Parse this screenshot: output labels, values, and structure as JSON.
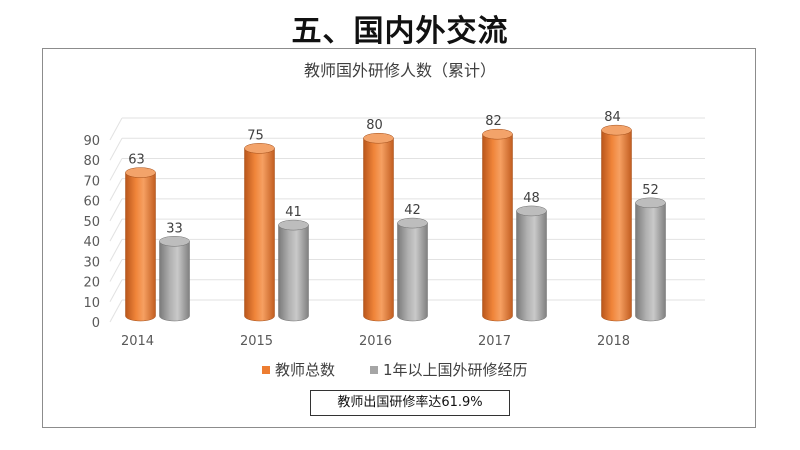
{
  "slide": {
    "title": "五、国内外交流"
  },
  "note": {
    "text": "教师出国研修率达61.9%"
  },
  "colors": {
    "orange": "#ED7D31",
    "gray": "#A5A5A5"
  },
  "chart_data": {
    "type": "bar",
    "title": "教师国外研修人数（累计）",
    "categories": [
      "2014",
      "2015",
      "2016",
      "2017",
      "2018"
    ],
    "series": [
      {
        "name": "教师总数",
        "values": [
          63,
          75,
          80,
          82,
          84
        ]
      },
      {
        "name": "1年以上国外研修经历",
        "values": [
          33,
          41,
          42,
          48,
          52
        ]
      }
    ],
    "ylim": [
      0,
      90
    ],
    "yticks": [
      0,
      10,
      20,
      30,
      40,
      50,
      60,
      70,
      80,
      90
    ],
    "grid": true,
    "legend": "bottom",
    "data_labels": true
  }
}
